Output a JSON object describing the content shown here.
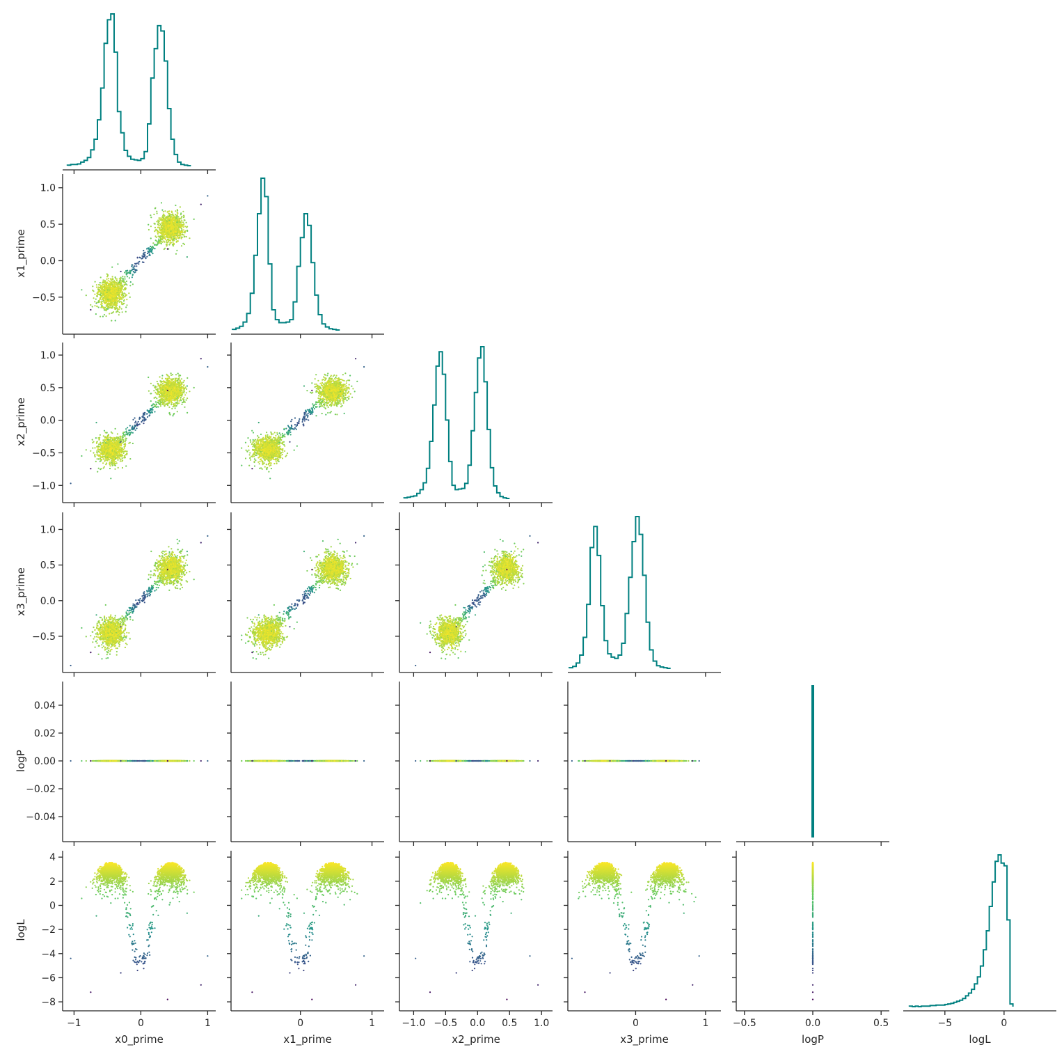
{
  "chart_data": {
    "type": "scatter",
    "title": "",
    "variables": [
      "x0_prime",
      "x1_prime",
      "x2_prime",
      "x3_prime",
      "logP",
      "logL"
    ],
    "axis_labels": {
      "x": [
        "x0_prime",
        "x1_prime",
        "x2_prime",
        "x3_prime",
        "logP",
        "logL"
      ],
      "y": [
        "",
        "x1_prime",
        "x2_prime",
        "x3_prime",
        "logP",
        "logL"
      ]
    },
    "ranges": [
      [
        -1.15,
        1.1
      ],
      [
        -0.95,
        1.15
      ],
      [
        -1.2,
        1.15
      ],
      [
        -0.95,
        1.2
      ],
      [
        -0.055,
        0.055
      ],
      [
        -8.4,
        4.3
      ]
    ],
    "ticks": [
      {
        "values": [
          -1,
          0,
          1
        ],
        "labels": [
          "−1",
          "0",
          "1"
        ]
      },
      {
        "values": [
          -0.5,
          0.0,
          0.5,
          1.0
        ],
        "labels": [
          "−0.5",
          "0.0",
          "0.5",
          "1.0"
        ]
      },
      {
        "values": [
          -1.0,
          -0.5,
          0.0,
          0.5,
          1.0
        ],
        "labels": [
          "−1.0",
          "−0.5",
          "0.0",
          "0.5",
          "1.0"
        ]
      },
      {
        "values": [
          -0.5,
          0.0,
          0.5,
          1.0
        ],
        "labels": [
          "−0.5",
          "0.0",
          "0.5",
          "1.0"
        ]
      },
      {
        "values": [
          -0.04,
          -0.02,
          0.0,
          0.02,
          0.04
        ],
        "labels": [
          "−0.04",
          "−0.02",
          "0.00",
          "0.02",
          "0.04"
        ]
      },
      {
        "values": [
          -8,
          -6,
          -4,
          -2,
          0,
          2,
          4
        ],
        "labels": [
          "−8",
          "−6",
          "−4",
          "−2",
          "0",
          "2",
          "4"
        ]
      }
    ],
    "x_tick_overrides": {
      "1": {
        "values": [
          0,
          1
        ],
        "labels": [
          "0",
          "1"
        ]
      },
      "3": {
        "values": [
          0,
          1
        ],
        "labels": [
          "0",
          "1"
        ]
      },
      "4": {
        "values": [
          -0.5,
          0.0,
          0.5
        ],
        "labels": [
          "−0.5",
          "0.0",
          "0.5"
        ]
      },
      "4_range": [
        -0.55,
        0.55
      ],
      "5": {
        "values": [
          -5,
          0
        ],
        "labels": [
          "−5",
          "0"
        ]
      }
    },
    "histograms": {
      "x0_prime": {
        "bin_start": -1.1,
        "bin_width": 0.05,
        "counts": [
          1,
          2,
          2,
          3,
          6,
          9,
          14,
          27,
          45,
          78,
          132,
          208,
          248,
          258,
          193,
          92,
          56,
          26,
          16,
          11,
          10,
          9,
          12,
          24,
          71,
          149,
          199,
          238,
          229,
          178,
          97,
          45,
          19,
          6,
          2,
          1,
          0
        ]
      },
      "x1_prime": {
        "bin_start": -0.95,
        "bin_width": 0.05,
        "counts": [
          1,
          3,
          6,
          13,
          27,
          60,
          122,
          190,
          248,
          218,
          108,
          33,
          17,
          12,
          12,
          13,
          17,
          46,
          104,
          151,
          190,
          171,
          110,
          57,
          25,
          10,
          5,
          2,
          1,
          0
        ]
      },
      "x2_prime": {
        "bin_start": -1.15,
        "bin_width": 0.05,
        "counts": [
          1,
          2,
          3,
          4,
          8,
          14,
          25,
          48,
          91,
          149,
          211,
          234,
          198,
          125,
          59,
          21,
          14,
          15,
          16,
          24,
          53,
          108,
          169,
          224,
          242,
          186,
          110,
          49,
          20,
          9,
          3,
          1,
          0
        ]
      },
      "x3_prime": {
        "bin_start": -0.95,
        "bin_width": 0.05,
        "counts": [
          1,
          3,
          8,
          20,
          47,
          97,
          183,
          215,
          171,
          95,
          42,
          22,
          17,
          15,
          20,
          38,
          83,
          138,
          192,
          230,
          203,
          141,
          70,
          28,
          11,
          4,
          2,
          1,
          0
        ]
      },
      "logP": {
        "bin_start": -0.005,
        "bin_width": 0.01,
        "counts": [
          1
        ]
      },
      "logL": {
        "bin_start": -8.0,
        "bin_width": 0.25,
        "counts": [
          1,
          0,
          1,
          0,
          1,
          1,
          1,
          2,
          2,
          3,
          3,
          3,
          4,
          5,
          6,
          8,
          10,
          12,
          15,
          20,
          25,
          32,
          42,
          55,
          75,
          105,
          140,
          185,
          230,
          268,
          280,
          265,
          260,
          160,
          5
        ]
      }
    },
    "scatter": {
      "modes": [
        -0.45,
        0.45
      ],
      "mode_spread": 0.13,
      "bridge_spread": 0.03,
      "color_by": "logL",
      "colormap": "viridis",
      "logL_max": 3.6,
      "points_per_panel": 2600,
      "outliers": [
        [
          -0.75,
          -7.2
        ],
        [
          -0.3,
          -5.6
        ],
        [
          0.4,
          -7.8
        ],
        [
          0.9,
          -6.6
        ],
        [
          -0.05,
          -5.4
        ],
        [
          1.0,
          -4.2
        ],
        [
          -1.05,
          -4.4
        ]
      ]
    },
    "colors": {
      "histogram": "#008080",
      "axis": "#262626",
      "viridis": [
        "#440154",
        "#3b528b",
        "#21918c",
        "#5ec962",
        "#fde725"
      ]
    },
    "layout": "corner",
    "grid": false,
    "legend": "none"
  }
}
